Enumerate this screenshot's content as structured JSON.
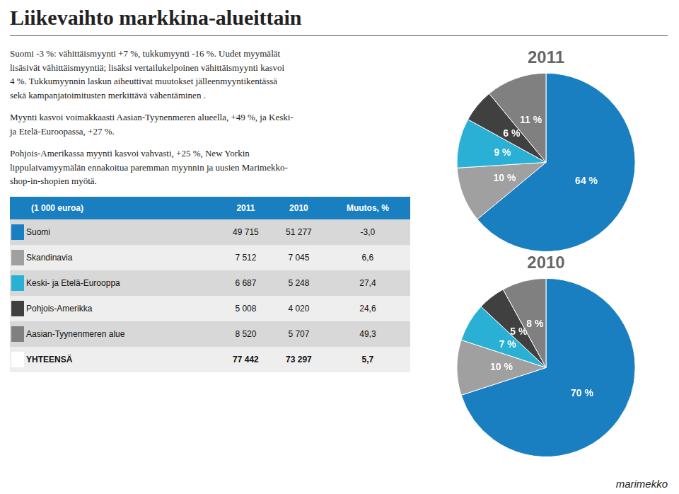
{
  "title": "Liikevaihto markkina-alueittain",
  "annotations": [
    "Suomi -3 %: vähittäismyynti +7 %, tukkumyynti -16 %. Uudet myymälät\nlisäsivät vähittäismyyntiä; lisäksi vertailukelpoinen vähittäismyynti kasvoi\n4 %. Tukkumyynnin laskun aiheuttivat muutokset jälleenmyyntikentässä\nsekä kampanjatoimitusten merkittävä vähentäminen .",
    "Myynti kasvoi voimakkaasti Aasian-Tyynenmeren alueella, +49 %, ja Keski-\nja Etelä-Euroopassa, +27 %.",
    "Pohjois-Amerikassa myynti kasvoi vahvasti, +25 %, New Yorkin\nlippulaivamyymälän ennakoitua paremman myynnin ja uusien Marimekko-\nshop-in-shopien myötä."
  ],
  "table": {
    "header": [
      "(1 000 euroa)",
      "2011",
      "2010",
      "Muutos, %"
    ],
    "rows": [
      [
        "Suomi",
        "49 715",
        "51 277",
        "-3,0"
      ],
      [
        "Skandinavia",
        "7 512",
        "7 045",
        "6,6"
      ],
      [
        "Keski- ja Etelä-Eurooppa",
        "6 687",
        "5 248",
        "27,4"
      ],
      [
        "Pohjois-Amerikka",
        "5 008",
        "4 020",
        "24,6"
      ],
      [
        "Aasian-Tyynenmeren alue",
        "8 520",
        "5 707",
        "49,3"
      ],
      [
        "YHTEENSÄ",
        "77 442",
        "73 297",
        "5,7"
      ]
    ],
    "colors": [
      "#1a7fc1",
      "#a0a0a0",
      "#29b0d4",
      "#404040",
      "#808080",
      "#ffffff"
    ]
  },
  "footer": "marimekko",
  "chart_data": [
    {
      "type": "pie",
      "title": "2011",
      "values": [
        64,
        10,
        9,
        6,
        11
      ],
      "value_labels": [
        "64 %",
        "10 %",
        "9 %",
        "6 %",
        "11 %"
      ],
      "data_labels": true,
      "colors": [
        "#1a7fc1",
        "#a0a0a0",
        "#29b0d4",
        "#404040",
        "#808080"
      ],
      "legend": false
    },
    {
      "type": "pie",
      "title": "2010",
      "values": [
        70,
        10,
        7,
        5,
        8
      ],
      "value_labels": [
        "70 %",
        "10 %",
        "7 %",
        "5 %",
        "8 %"
      ],
      "data_labels": true,
      "colors": [
        "#1a7fc1",
        "#a0a0a0",
        "#29b0d4",
        "#404040",
        "#808080"
      ],
      "legend": false
    }
  ]
}
